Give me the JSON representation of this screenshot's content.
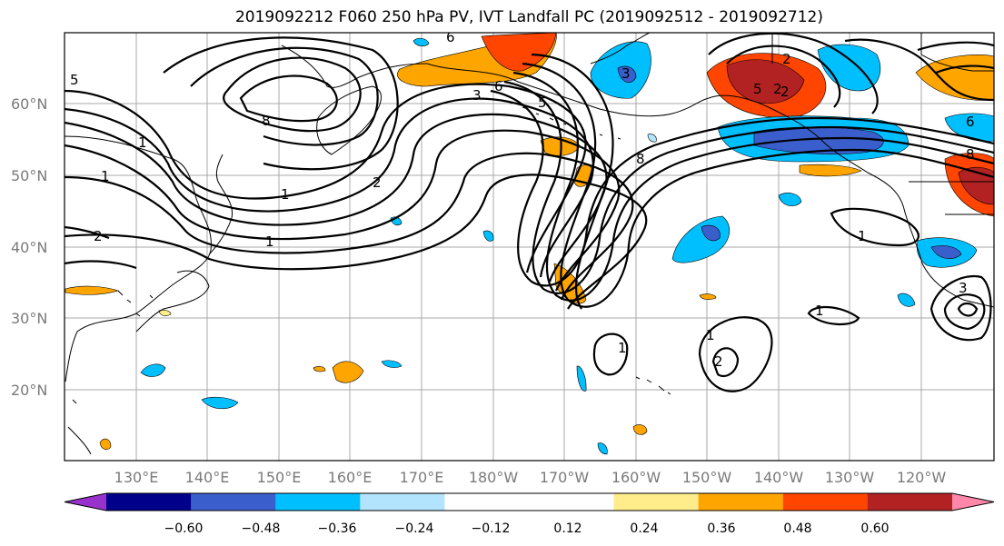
{
  "title": "2019092212 F060 250 hPa PV, IVT Landfall PC (2019092512 - 2019092712)",
  "map": {
    "lat_labels": [
      "60°N",
      "50°N",
      "40°N",
      "30°N",
      "20°N"
    ],
    "lon_labels": [
      "130°E",
      "140°E",
      "150°E",
      "160°E",
      "170°E",
      "180°W",
      "170°W",
      "160°W",
      "150°W",
      "140°W",
      "130°W",
      "120°W"
    ],
    "contour_labels": [
      "6",
      "5",
      "8",
      "3",
      "6",
      "5",
      "1",
      "2",
      "1",
      "1",
      "2",
      "1",
      "2",
      "3",
      "8",
      "2",
      "5",
      "2",
      "8",
      "6",
      "1",
      "1",
      "1",
      "2",
      "3",
      "1"
    ]
  },
  "colorbar": {
    "colors": [
      "#9932cc",
      "#00008b",
      "#3a5fcd",
      "#00bfff",
      "#b2e5fd",
      "#ffffff",
      "#ffffff",
      "#ffec8b",
      "#ffa500",
      "#ff4500",
      "#b22222",
      "#ff88aa"
    ],
    "ticks": [
      "−0.60",
      "−0.48",
      "−0.36",
      "−0.24",
      "−0.12",
      "0.12",
      "0.24",
      "0.36",
      "0.48",
      "0.60"
    ]
  }
}
